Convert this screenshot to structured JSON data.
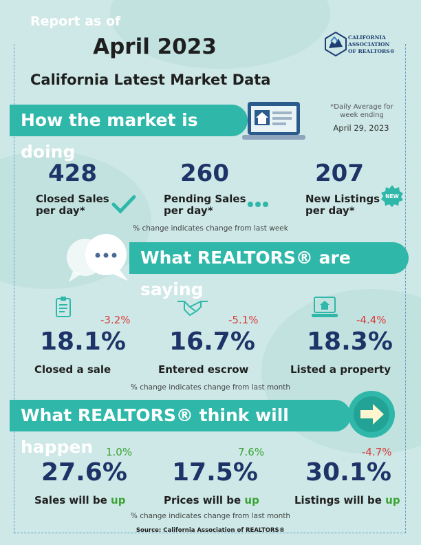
{
  "header": {
    "report_as_of": "Report as of",
    "month": "April 2023",
    "subtitle": "California Latest Market Data",
    "logo_lines": [
      "CALIFORNIA",
      "ASSOCIATION",
      "OF REALTORS®"
    ]
  },
  "market": {
    "banner": "How the market is doing",
    "daily_note": "*Daily Average for week ending",
    "week_ending": "April 29, 2023",
    "stats": [
      {
        "value": "428",
        "label_line1": "Closed Sales",
        "label_line2": "per day*"
      },
      {
        "value": "260",
        "label_line1": "Pending Sales",
        "label_line2": "per day*"
      },
      {
        "value": "207",
        "label_line1": "New Listings",
        "label_line2": "per day*"
      }
    ],
    "new_badge": "NEW",
    "note": "% change indicates change from last week"
  },
  "saying": {
    "banner": "What REALTORS® are saying",
    "items": [
      {
        "pct": "18.1%",
        "change": "-3.2%",
        "label": "Closed a sale",
        "icon": "clipboard-icon"
      },
      {
        "pct": "16.7%",
        "change": "-5.1%",
        "label": "Entered escrow",
        "icon": "handshake-icon"
      },
      {
        "pct": "18.3%",
        "change": "-4.4%",
        "label": "Listed a property",
        "icon": "laptop-house-icon"
      }
    ],
    "note": "% change indicates change from last month"
  },
  "think": {
    "banner": "What REALTORS® think will happen",
    "items": [
      {
        "pct": "27.6%",
        "change": "1.0%",
        "label": "Sales will be ",
        "label_up": "up"
      },
      {
        "pct": "17.5%",
        "change": "7.6%",
        "label": "Prices will be ",
        "label_up": "up"
      },
      {
        "pct": "30.1%",
        "change": "-4.7%",
        "label": "Listings will be ",
        "label_up": "up"
      }
    ],
    "note": "% change indicates change from last month"
  },
  "source": "Source: California Association of REALTORS®",
  "colors": {
    "teal": "#2fb8a9",
    "navy": "#1e3468",
    "red": "#d93b3b",
    "green": "#3aa332",
    "background": "#cde8e6"
  }
}
